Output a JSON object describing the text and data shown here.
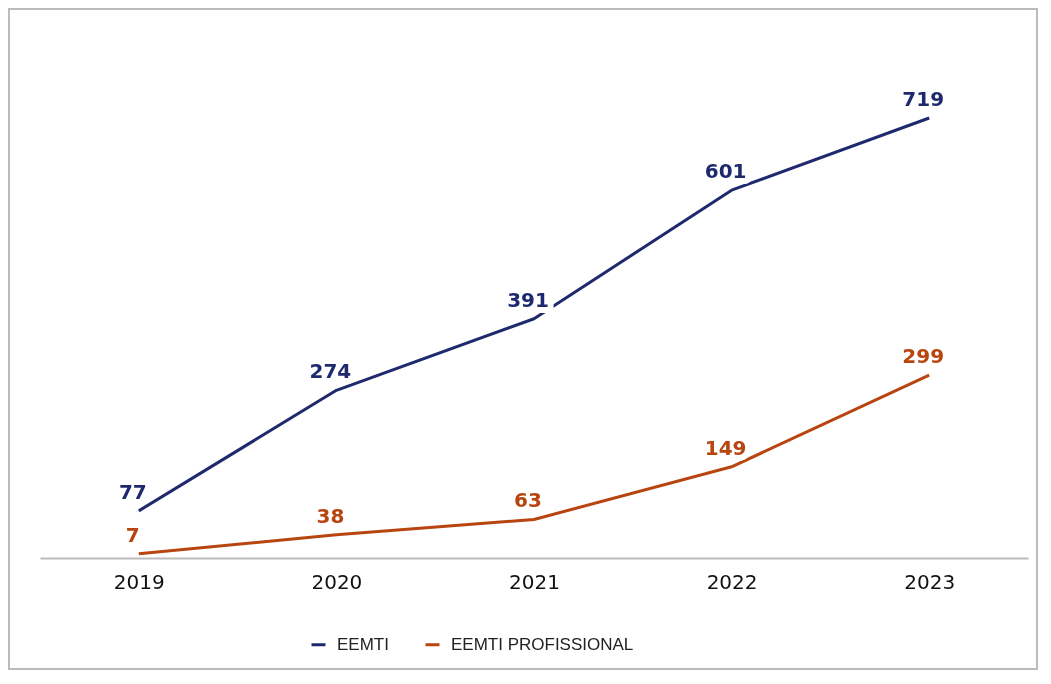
{
  "chart_data": {
    "type": "line",
    "categories": [
      "2019",
      "2020",
      "2021",
      "2022",
      "2023"
    ],
    "series": [
      {
        "name": "EEMTI",
        "color": "#1f2a6e",
        "values": [
          77,
          274,
          391,
          601,
          719
        ]
      },
      {
        "name": "EEMTI PROFISSIONAL",
        "color": "#b8440f",
        "values": [
          7,
          38,
          63,
          149,
          299
        ]
      }
    ],
    "data_labels": true,
    "legend": "bottom",
    "grid": false,
    "line_style": "solid"
  }
}
